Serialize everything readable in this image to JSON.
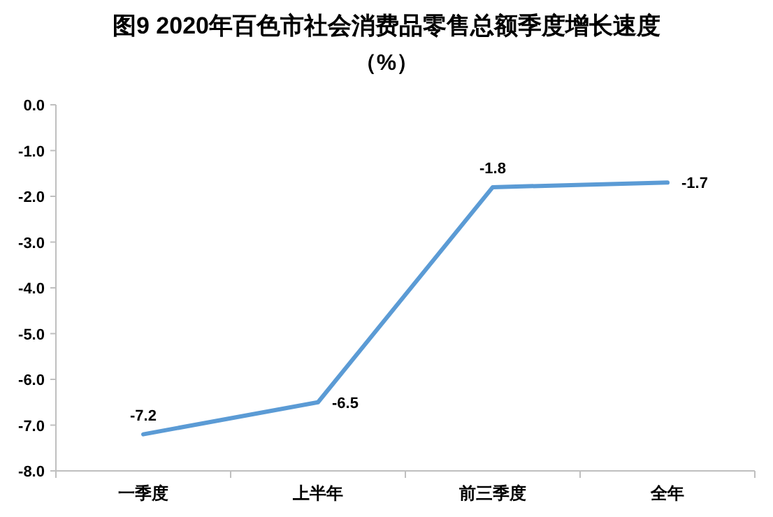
{
  "chart_data": {
    "type": "line",
    "title": "图9  2020年百色市社会消费品零售总额季度增长速度",
    "subtitle": "（%）",
    "categories": [
      "一季度",
      "上半年",
      "前三季度",
      "全年"
    ],
    "series": [
      {
        "color": "#5b9bd5",
        "values": [
          -7.2,
          -6.5,
          -1.8,
          -1.7
        ]
      }
    ],
    "ylim": [
      -8,
      0
    ],
    "yticks": [
      {
        "value": 0,
        "label": "0.0"
      },
      {
        "value": -1,
        "label": "-1.0"
      },
      {
        "value": -2,
        "label": "-2.0"
      },
      {
        "value": -3,
        "label": "-3.0"
      },
      {
        "value": -4,
        "label": "-4.0"
      },
      {
        "value": -5,
        "label": "-5.0"
      },
      {
        "value": -6,
        "label": "-6.0"
      },
      {
        "value": -7,
        "label": "-7.0"
      },
      {
        "value": -8,
        "label": "-8.0"
      }
    ],
    "grid": false,
    "marker": "none",
    "line_style": "solid",
    "data_labels": true
  }
}
